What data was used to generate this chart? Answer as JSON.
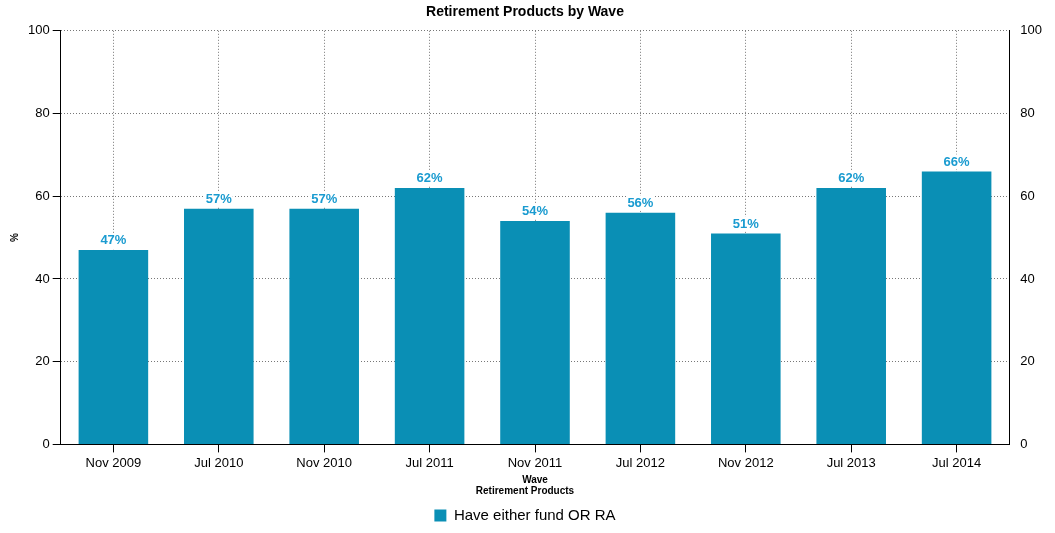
{
  "chart_data": {
    "type": "bar",
    "title": "Retirement Products by Wave",
    "xlabel": "Wave",
    "ylabel": "%",
    "legend_title": "Retirement Products",
    "categories": [
      "Nov 2009",
      "Jul 2010",
      "Nov 2010",
      "Jul 2011",
      "Nov 2011",
      "Jul 2012",
      "Nov 2012",
      "Jul 2013",
      "Jul 2014"
    ],
    "series": [
      {
        "name": "Have either fund OR RA",
        "color": "#0a8fb5",
        "values": [
          47,
          57,
          57,
          62,
          54,
          56,
          51,
          62,
          66
        ],
        "value_labels": [
          "47%",
          "57%",
          "57%",
          "62%",
          "54%",
          "56%",
          "51%",
          "62%",
          "66%"
        ]
      }
    ],
    "ylim": [
      0,
      100
    ],
    "yticks": [
      0,
      20,
      40,
      60,
      80,
      100
    ],
    "y2lim": [
      0,
      100
    ],
    "y2ticks": [
      0,
      20,
      40,
      60,
      80,
      100
    ],
    "grid": true,
    "legend": "bottom"
  }
}
